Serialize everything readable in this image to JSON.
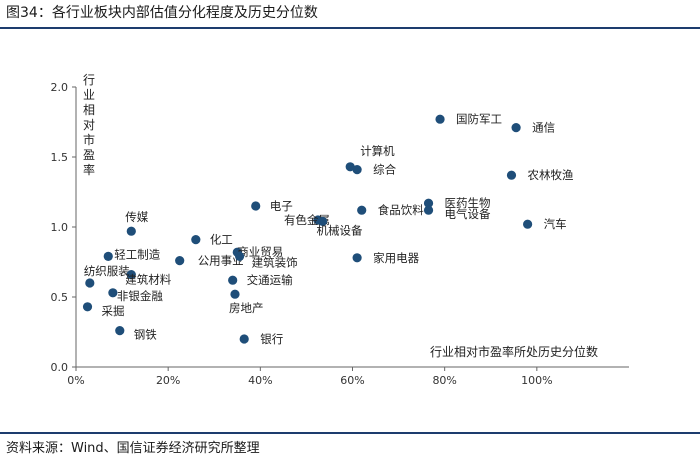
{
  "header": {
    "title": "图34：各行业板块内部估值分化程度及历史分位数"
  },
  "footer": {
    "source": "资料来源：Wind、国信证券经济研究所整理"
  },
  "chart_data": {
    "type": "scatter",
    "title": "各行业板块内部估值分化程度及历史分位数",
    "xlabel": "行业相对市盈率所处历史分位数",
    "ylabel": "行业相对市盈率",
    "xlim": [
      0,
      1.2
    ],
    "ylim": [
      0,
      2.0
    ],
    "x_ticks": [
      "0%",
      "20%",
      "40%",
      "60%",
      "80%",
      "100%"
    ],
    "y_ticks": [
      "0.0",
      "0.5",
      "1.0",
      "1.5",
      "2.0"
    ],
    "marker_color": "#1f4e79",
    "points": [
      {
        "name": "国防军工",
        "x": 0.79,
        "y": 1.77
      },
      {
        "name": "通信",
        "x": 0.955,
        "y": 1.71
      },
      {
        "name": "计算机",
        "x": 0.595,
        "y": 1.43
      },
      {
        "name": "综合",
        "x": 0.61,
        "y": 1.41
      },
      {
        "name": "农林牧渔",
        "x": 0.945,
        "y": 1.37
      },
      {
        "name": "医药生物",
        "x": 0.765,
        "y": 1.17
      },
      {
        "name": "电气设备",
        "x": 0.765,
        "y": 1.12
      },
      {
        "name": "电子",
        "x": 0.39,
        "y": 1.15
      },
      {
        "name": "食品饮料",
        "x": 0.62,
        "y": 1.12
      },
      {
        "name": "有色金属",
        "x": 0.525,
        "y": 1.05
      },
      {
        "name": "机械设备",
        "x": 0.535,
        "y": 1.04
      },
      {
        "name": "汽车",
        "x": 0.98,
        "y": 1.02
      },
      {
        "name": "传媒",
        "x": 0.12,
        "y": 0.97
      },
      {
        "name": "化工",
        "x": 0.26,
        "y": 0.91
      },
      {
        "name": "轻工制造",
        "x": 0.07,
        "y": 0.79
      },
      {
        "name": "公用事业",
        "x": 0.225,
        "y": 0.76
      },
      {
        "name": "商业贸易",
        "x": 0.35,
        "y": 0.82
      },
      {
        "name": "建筑装饰",
        "x": 0.355,
        "y": 0.79
      },
      {
        "name": "家用电器",
        "x": 0.61,
        "y": 0.78
      },
      {
        "name": "纺织服装",
        "x": 0.03,
        "y": 0.6
      },
      {
        "name": "建筑材料",
        "x": 0.12,
        "y": 0.66
      },
      {
        "name": "交通运输",
        "x": 0.34,
        "y": 0.62
      },
      {
        "name": "非银金融",
        "x": 0.08,
        "y": 0.53
      },
      {
        "name": "房地产",
        "x": 0.345,
        "y": 0.52
      },
      {
        "name": "采掘",
        "x": 0.025,
        "y": 0.43
      },
      {
        "name": "钢铁",
        "x": 0.095,
        "y": 0.26
      },
      {
        "name": "银行",
        "x": 0.365,
        "y": 0.2
      }
    ]
  }
}
